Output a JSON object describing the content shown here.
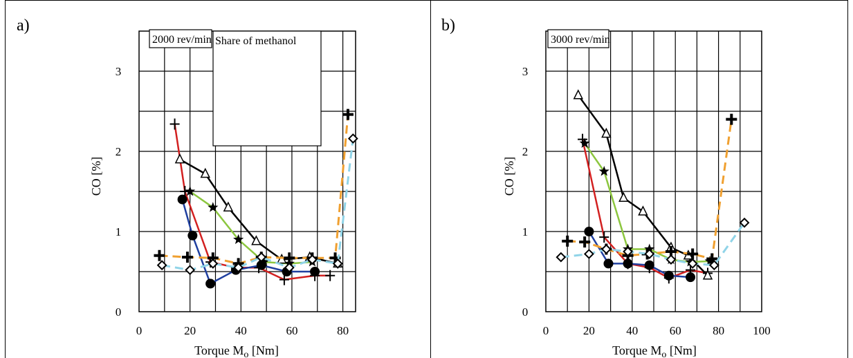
{
  "panels": [
    {
      "panel_label": "a)",
      "speed_label": "2000 rev/min",
      "legend_title": "Share of methanol",
      "y_label": "CO  [%]",
      "x_label_main": "Torque  M",
      "x_label_sub": "o",
      "x_label_unit": "  [Nm]"
    },
    {
      "panel_label": "b)",
      "speed_label": "3000 rev/min",
      "legend_title": "",
      "y_label": "CO  [%]",
      "x_label_main": "Torque  M",
      "x_label_sub": "o",
      "x_label_unit": "  [Nm]"
    }
  ],
  "chart_data": [
    {
      "type": "line",
      "title": "",
      "xlabel": "Torque Mo [Nm]",
      "ylabel": "CO [%]",
      "xlim": [
        0,
        85
      ],
      "ylim": [
        0,
        3.5
      ],
      "xticks": [
        0,
        20,
        40,
        60,
        80
      ],
      "yticks": [
        0,
        1,
        2,
        3
      ],
      "grid": true,
      "series": [
        {
          "color": "#d22020",
          "dash": "solid",
          "marker": "thin-plus",
          "x": [
            14,
            18,
            28,
            38,
            47,
            57,
            69,
            75
          ],
          "y": [
            2.34,
            1.5,
            0.62,
            0.55,
            0.55,
            0.4,
            0.45,
            0.45
          ]
        },
        {
          "color": "#1f3f9f",
          "dash": "solid",
          "marker": "circle",
          "x": [
            17,
            21,
            28,
            38,
            48,
            58,
            69
          ],
          "y": [
            1.4,
            0.95,
            0.35,
            0.52,
            0.58,
            0.5,
            0.5
          ]
        },
        {
          "color": "#8cc63f",
          "dash": "solid",
          "marker": "star",
          "x": [
            20,
            29,
            39,
            49,
            59,
            68
          ],
          "y": [
            1.5,
            1.3,
            0.9,
            0.62,
            0.6,
            0.62
          ]
        },
        {
          "color": "#000000",
          "dash": "solid",
          "marker": "triangle",
          "x": [
            16,
            26,
            35,
            46,
            56,
            67,
            78
          ],
          "y": [
            1.9,
            1.72,
            1.3,
            0.88,
            0.65,
            0.68,
            0.6
          ]
        },
        {
          "color": "#f0a030",
          "dash": "dashed",
          "marker": "bold-plus",
          "x": [
            8,
            19,
            29,
            39,
            48,
            59,
            68,
            77,
            82
          ],
          "y": [
            0.7,
            0.68,
            0.67,
            0.6,
            0.68,
            0.67,
            0.67,
            0.67,
            2.46
          ]
        },
        {
          "color": "#90d4e8",
          "dash": "dashed",
          "marker": "diamond",
          "x": [
            9,
            20,
            29,
            39,
            48,
            59,
            68,
            78,
            84
          ],
          "y": [
            0.58,
            0.52,
            0.6,
            0.55,
            0.68,
            0.55,
            0.65,
            0.6,
            2.16
          ]
        }
      ]
    },
    {
      "type": "line",
      "title": "",
      "xlabel": "Torque Mo [Nm]",
      "ylabel": "CO [%]",
      "xlim": [
        0,
        100
      ],
      "ylim": [
        0,
        3.5
      ],
      "xticks": [
        0,
        20,
        40,
        60,
        80,
        100
      ],
      "yticks": [
        0,
        1,
        2,
        3
      ],
      "grid": true,
      "series": [
        {
          "color": "#d22020",
          "dash": "solid",
          "marker": "thin-plus",
          "x": [
            17,
            27,
            38,
            48,
            57,
            67,
            75
          ],
          "y": [
            2.15,
            0.93,
            0.6,
            0.55,
            0.42,
            0.52,
            0.48
          ]
        },
        {
          "color": "#1f3f9f",
          "dash": "solid",
          "marker": "circle",
          "x": [
            20,
            29,
            38,
            48,
            57,
            67
          ],
          "y": [
            1.0,
            0.6,
            0.6,
            0.58,
            0.45,
            0.43
          ]
        },
        {
          "color": "#8cc63f",
          "dash": "solid",
          "marker": "star",
          "x": [
            18,
            27,
            38,
            48,
            58,
            67,
            76
          ],
          "y": [
            2.1,
            1.75,
            0.78,
            0.78,
            0.65,
            0.62,
            0.63
          ]
        },
        {
          "color": "#000000",
          "dash": "solid",
          "marker": "triangle",
          "x": [
            15,
            28,
            36,
            45,
            58,
            66,
            75
          ],
          "y": [
            2.7,
            2.22,
            1.42,
            1.25,
            0.8,
            0.7,
            0.45
          ]
        },
        {
          "color": "#f0a030",
          "dash": "dashed",
          "marker": "bold-plus",
          "x": [
            10,
            18,
            28,
            38,
            47,
            58,
            68,
            77,
            86
          ],
          "y": [
            0.88,
            0.87,
            0.78,
            0.7,
            0.72,
            0.75,
            0.72,
            0.66,
            2.4
          ]
        },
        {
          "color": "#90d4e8",
          "dash": "dashed",
          "marker": "diamond",
          "x": [
            7,
            20,
            28,
            38,
            48,
            58,
            68,
            78,
            92
          ],
          "y": [
            0.68,
            0.72,
            0.78,
            0.75,
            0.72,
            0.65,
            0.6,
            0.58,
            1.11
          ]
        }
      ]
    }
  ]
}
